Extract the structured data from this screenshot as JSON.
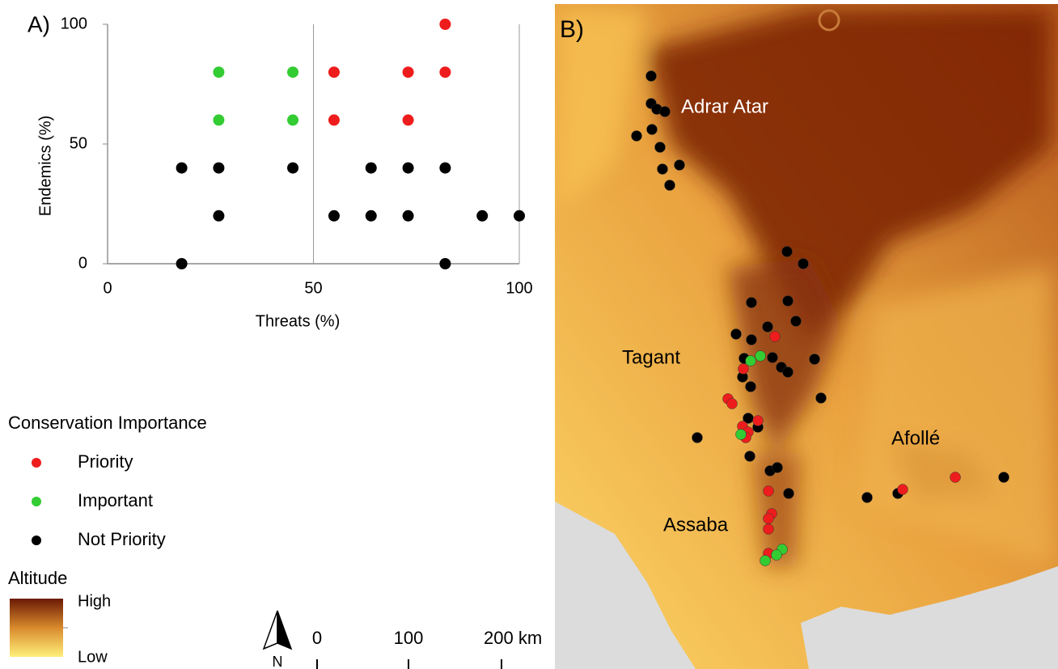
{
  "chart_data": {
    "type": "scatter",
    "panel_label": "A)",
    "xlabel": "Threats (%)",
    "ylabel": "Endemics (%)",
    "xlim": [
      0,
      100
    ],
    "ylim": [
      0,
      100
    ],
    "xticks": [
      0,
      50,
      100
    ],
    "yticks": [
      0,
      50,
      100
    ],
    "grid": "x",
    "legend_title": "Conservation Importance",
    "series": [
      {
        "name": "Priority",
        "color": "#ee1c1c",
        "x": [
          55,
          55,
          73,
          73,
          82,
          82
        ],
        "values": [
          80,
          60,
          80,
          60,
          100,
          80
        ]
      },
      {
        "name": "Important",
        "color": "#33cc33",
        "x": [
          27,
          27,
          45,
          45
        ],
        "values": [
          80,
          60,
          80,
          60
        ]
      },
      {
        "name": "Not Priority",
        "color": "#000000",
        "x": [
          18,
          18,
          27,
          27,
          45,
          55,
          64,
          64,
          73,
          73,
          82,
          82,
          91,
          100
        ],
        "values": [
          40,
          0,
          40,
          20,
          40,
          20,
          20,
          40,
          20,
          40,
          40,
          0,
          20,
          20
        ]
      }
    ]
  },
  "map": {
    "panel_label": "B)",
    "regions": [
      "Adrar Atar",
      "Tagant",
      "Afollé",
      "Assaba"
    ],
    "altitude_legend": {
      "title": "Altitude",
      "high": "High",
      "low": "Low"
    },
    "scale_bar": [
      "0",
      "100",
      "200 km"
    ],
    "north": "N"
  }
}
